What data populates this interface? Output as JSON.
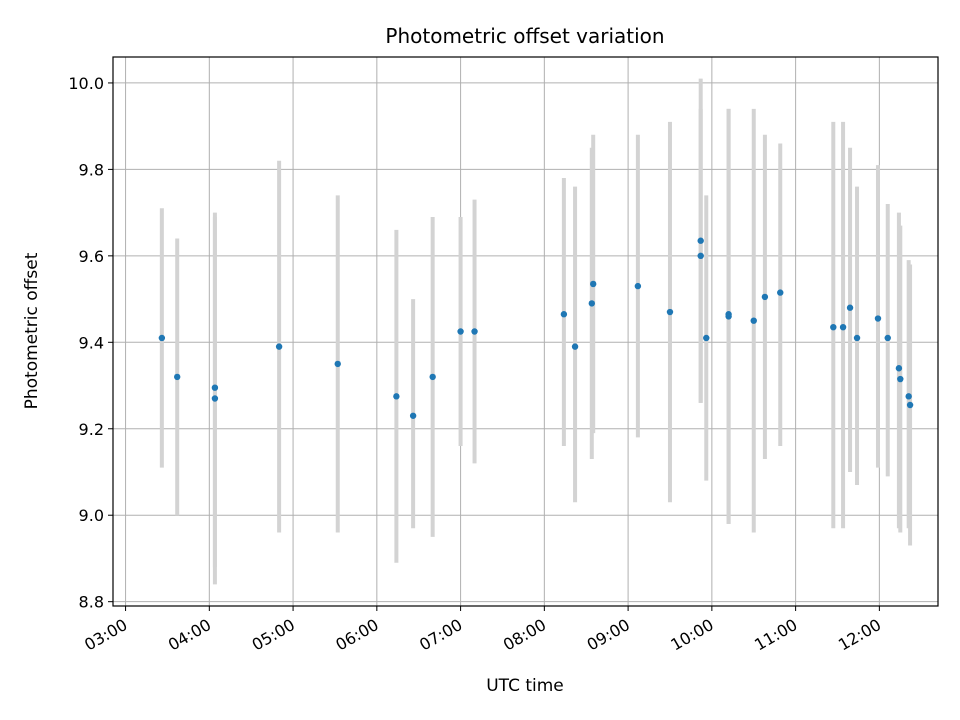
{
  "chart_data": {
    "type": "scatter",
    "title": "Photometric offset variation",
    "xlabel": "UTC time",
    "ylabel": "Photometric offset",
    "grid": true,
    "xlim": [
      "02:51",
      "12:42"
    ],
    "ylim": [
      8.79,
      10.06
    ],
    "x_ticks": [
      "03:00",
      "04:00",
      "05:00",
      "06:00",
      "07:00",
      "08:00",
      "09:00",
      "10:00",
      "11:00",
      "12:00"
    ],
    "y_ticks": [
      "8.8",
      "9.0",
      "9.2",
      "9.4",
      "9.6",
      "9.8",
      "10.0"
    ],
    "colors": {
      "points": "#1f77b4",
      "errorbars": "#d3d3d3",
      "grid": "#b0b0b0"
    },
    "points": [
      {
        "x": "03:26",
        "y": 9.41,
        "ylow": 9.11,
        "yhigh": 9.71
      },
      {
        "x": "03:37",
        "y": 9.32,
        "ylow": 9.0,
        "yhigh": 9.64
      },
      {
        "x": "04:04",
        "y": 9.295,
        "ylow": 8.88,
        "yhigh": 9.7
      },
      {
        "x": "04:04",
        "y": 9.27,
        "ylow": 8.84,
        "yhigh": 9.69
      },
      {
        "x": "04:50",
        "y": 9.39,
        "ylow": 8.96,
        "yhigh": 9.82
      },
      {
        "x": "05:32",
        "y": 9.35,
        "ylow": 8.96,
        "yhigh": 9.74
      },
      {
        "x": "06:14",
        "y": 9.275,
        "ylow": 8.89,
        "yhigh": 9.66
      },
      {
        "x": "06:26",
        "y": 9.23,
        "ylow": 8.97,
        "yhigh": 9.5
      },
      {
        "x": "06:40",
        "y": 9.32,
        "ylow": 8.95,
        "yhigh": 9.69
      },
      {
        "x": "07:00",
        "y": 9.425,
        "ylow": 9.16,
        "yhigh": 9.69
      },
      {
        "x": "07:10",
        "y": 9.425,
        "ylow": 9.12,
        "yhigh": 9.73
      },
      {
        "x": "08:14",
        "y": 9.465,
        "ylow": 9.16,
        "yhigh": 9.78
      },
      {
        "x": "08:22",
        "y": 9.39,
        "ylow": 9.03,
        "yhigh": 9.76
      },
      {
        "x": "08:34",
        "y": 9.49,
        "ylow": 9.13,
        "yhigh": 9.85
      },
      {
        "x": "08:35",
        "y": 9.535,
        "ylow": 9.19,
        "yhigh": 9.88
      },
      {
        "x": "09:07",
        "y": 9.53,
        "ylow": 9.18,
        "yhigh": 9.88
      },
      {
        "x": "09:30",
        "y": 9.47,
        "ylow": 9.03,
        "yhigh": 9.91
      },
      {
        "x": "09:52",
        "y": 9.635,
        "ylow": 9.26,
        "yhigh": 10.01
      },
      {
        "x": "09:52",
        "y": 9.6,
        "ylow": 9.26,
        "yhigh": 9.94
      },
      {
        "x": "09:56",
        "y": 9.41,
        "ylow": 9.08,
        "yhigh": 9.74
      },
      {
        "x": "10:12",
        "y": 9.46,
        "ylow": 8.98,
        "yhigh": 9.94
      },
      {
        "x": "10:12",
        "y": 9.465,
        "ylow": 8.98,
        "yhigh": 9.94
      },
      {
        "x": "10:30",
        "y": 9.45,
        "ylow": 8.96,
        "yhigh": 9.94
      },
      {
        "x": "10:38",
        "y": 9.505,
        "ylow": 9.13,
        "yhigh": 9.88
      },
      {
        "x": "10:49",
        "y": 9.515,
        "ylow": 9.16,
        "yhigh": 9.86
      },
      {
        "x": "11:27",
        "y": 9.435,
        "ylow": 8.97,
        "yhigh": 9.91
      },
      {
        "x": "11:34",
        "y": 9.435,
        "ylow": 8.97,
        "yhigh": 9.91
      },
      {
        "x": "11:39",
        "y": 9.48,
        "ylow": 9.1,
        "yhigh": 9.85
      },
      {
        "x": "11:44",
        "y": 9.41,
        "ylow": 9.07,
        "yhigh": 9.76
      },
      {
        "x": "11:59",
        "y": 9.455,
        "ylow": 9.11,
        "yhigh": 9.81
      },
      {
        "x": "12:06",
        "y": 9.41,
        "ylow": 9.09,
        "yhigh": 9.72
      },
      {
        "x": "12:14",
        "y": 9.34,
        "ylow": 8.97,
        "yhigh": 9.7
      },
      {
        "x": "12:15",
        "y": 9.315,
        "ylow": 8.96,
        "yhigh": 9.67
      },
      {
        "x": "12:21",
        "y": 9.275,
        "ylow": 8.97,
        "yhigh": 9.59
      },
      {
        "x": "12:22",
        "y": 9.255,
        "ylow": 8.93,
        "yhigh": 9.58
      }
    ]
  }
}
